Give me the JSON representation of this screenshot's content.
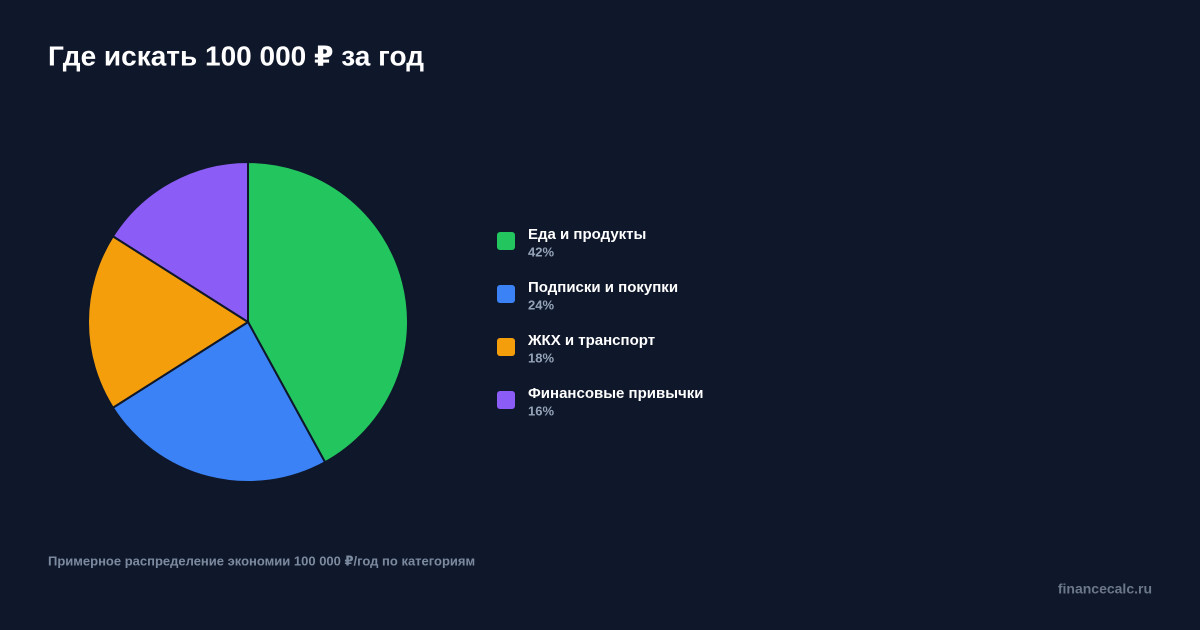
{
  "chart_data": {
    "type": "pie",
    "title": "Где искать 100 000 ₽ за год",
    "categories": [
      "Еда и продукты",
      "Подписки и покупки",
      "ЖКХ и транспорт",
      "Финансовые привычки"
    ],
    "values": [
      42,
      24,
      18,
      16
    ],
    "value_labels": [
      "42%",
      "24%",
      "18%",
      "16%"
    ],
    "colors": [
      "#22c55e",
      "#3b82f6",
      "#f59e0b",
      "#8b5cf6"
    ],
    "caption": "Примерное распределение экономии 100 000 ₽/год по категориям",
    "source": "financecalc.ru"
  }
}
